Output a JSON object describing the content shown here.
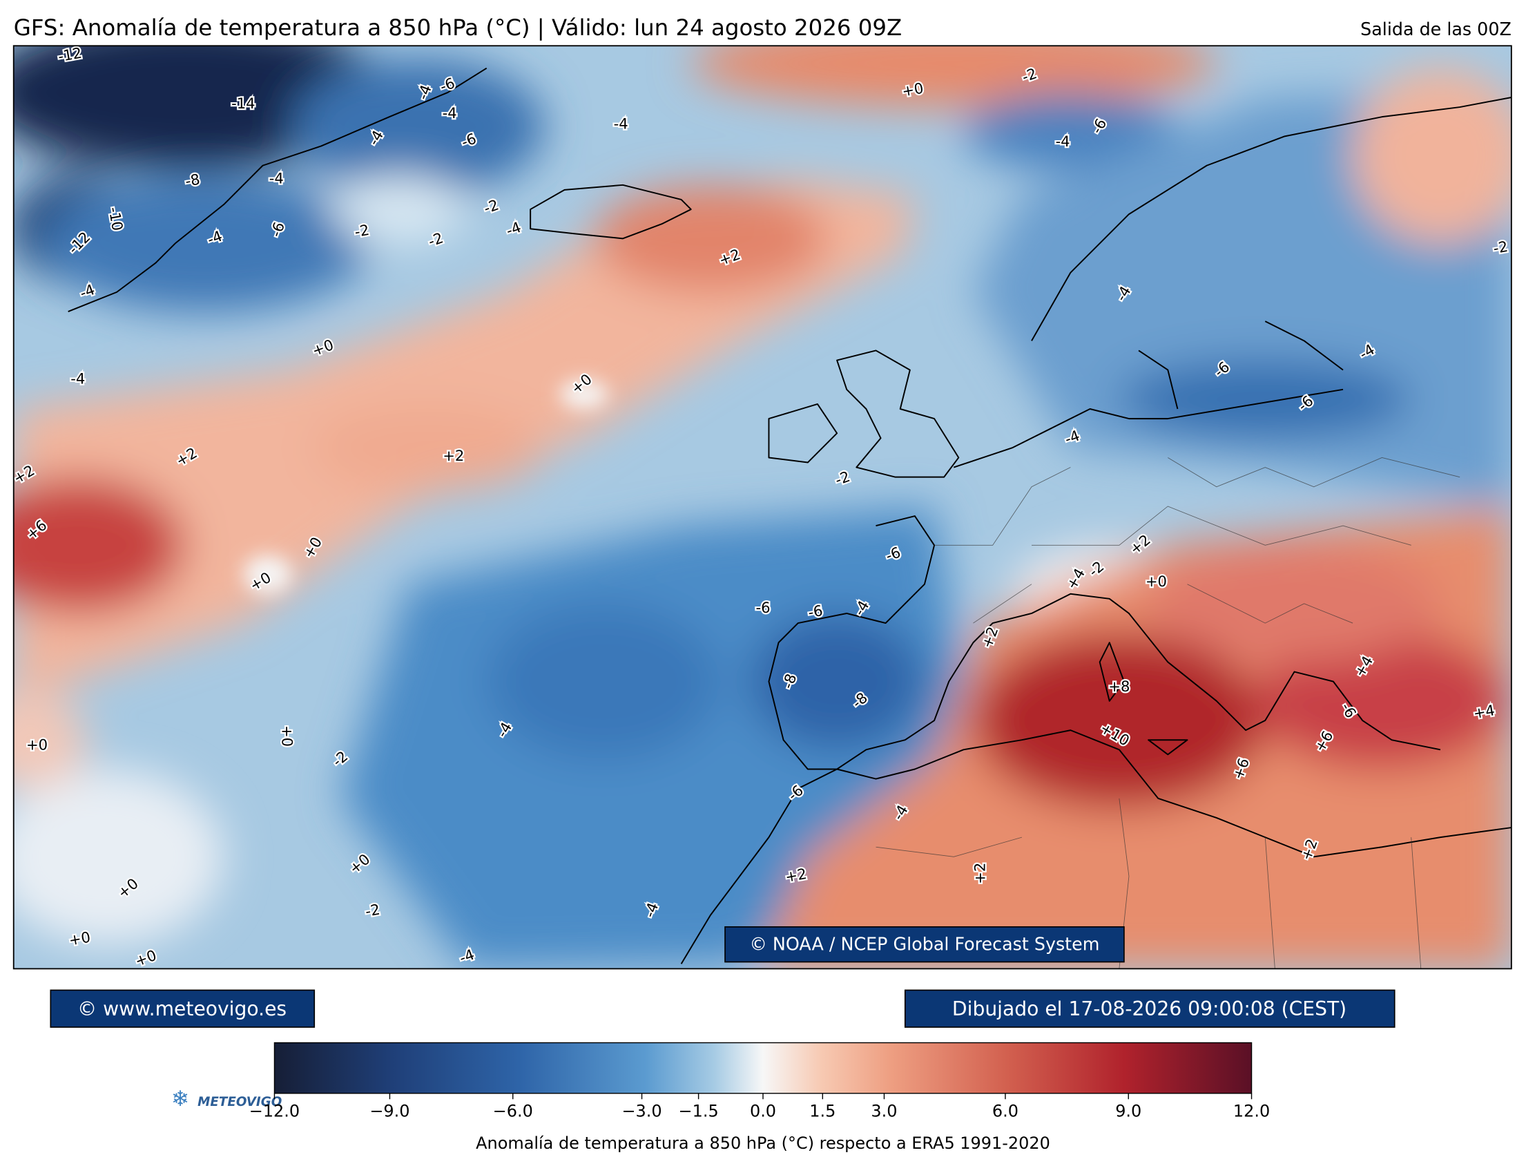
{
  "header": {
    "title": "GFS: Anomalía de temperatura a 850 hPa (°C) | Válido: lun 24 agosto 2026 09Z",
    "run": "Salida de las 00Z"
  },
  "map": {
    "contour_labels": [
      "-12",
      "-14",
      "-6",
      "-4",
      "-4",
      "-6",
      "-4",
      "-4",
      "+0",
      "-2",
      "-4",
      "-6",
      "-8",
      "-4",
      "-10",
      "-12",
      "-4",
      "-6",
      "-2",
      "-2",
      "-2",
      "-4",
      "+2",
      "-4",
      "-4",
      "+0",
      "-4",
      "+0",
      "-6",
      "-4",
      "-6",
      "-2",
      "+2",
      "+2",
      "+2",
      "-4",
      "-2",
      "+6",
      "+0",
      "+0",
      "-6",
      "+2",
      "+4",
      "-2",
      "+0",
      "-6",
      "-6",
      "-4",
      "+2",
      "-8",
      "-8",
      "+8",
      "+4",
      "+0",
      "-4",
      "+0",
      "+10",
      "-6",
      "+6",
      "+4",
      "-2",
      "+6",
      "-6",
      "-4",
      "+0",
      "+2",
      "+2",
      "+2",
      "+0",
      "-2",
      "-4",
      "+0",
      "+0",
      "-4"
    ],
    "credit": "© NOAA / NCEP Global Forecast System"
  },
  "footer": {
    "site": "© www.meteovigo.es",
    "drawn": "Dibujado el 17-08-2026 09:00:08 (CEST)",
    "logo": "METEOVIGO"
  },
  "colorbar": {
    "lim": [
      -12,
      12
    ],
    "ticks": [
      {
        "value": -12,
        "label": "−12.0"
      },
      {
        "value": -9,
        "label": "−9.0"
      },
      {
        "value": -6,
        "label": "−6.0"
      },
      {
        "value": -3,
        "label": "−3.0"
      },
      {
        "value": -1.5,
        "label": "−1.5"
      },
      {
        "value": 0,
        "label": "0.0"
      },
      {
        "value": 1.5,
        "label": "1.5"
      },
      {
        "value": 3,
        "label": "3.0"
      },
      {
        "value": 6,
        "label": "6.0"
      },
      {
        "value": 9,
        "label": "9.0"
      },
      {
        "value": 12,
        "label": "12.0"
      }
    ],
    "label": "Anomalía de temperatura a 850 hPa (°C) respecto a ERA5 1991-2020"
  }
}
